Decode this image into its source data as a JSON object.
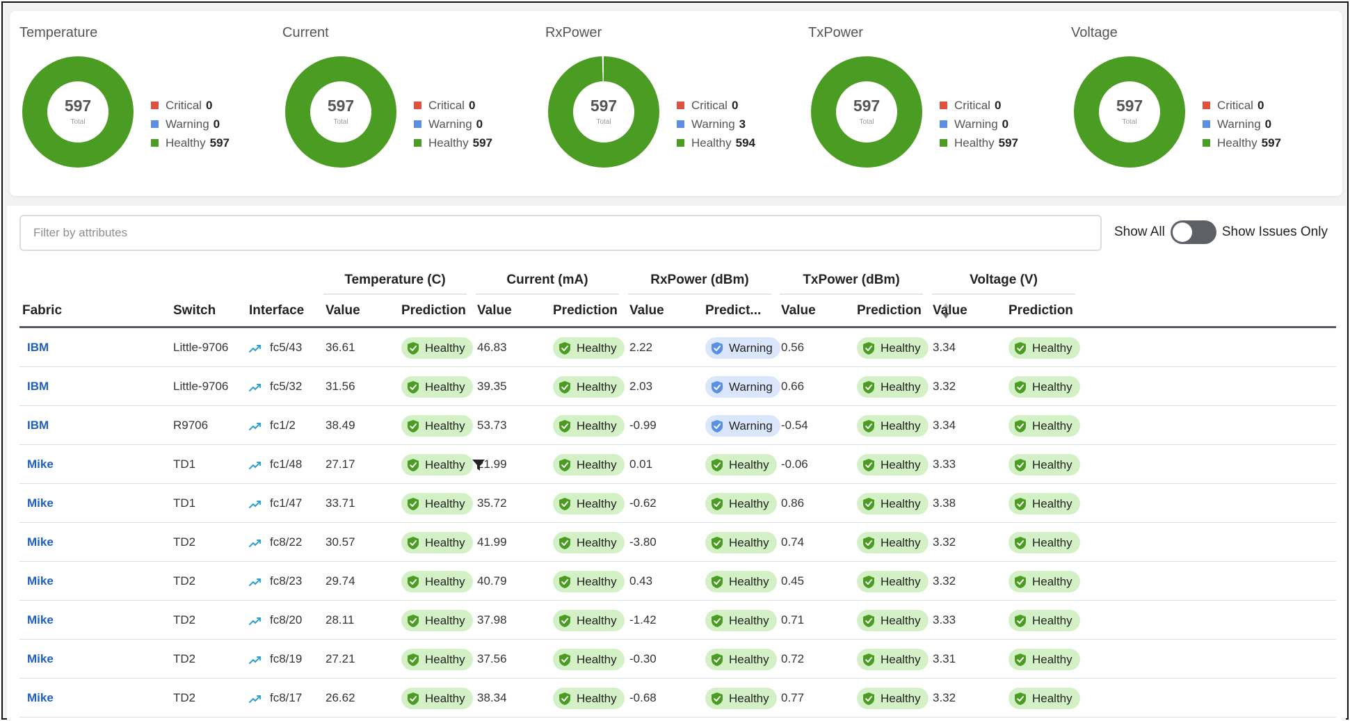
{
  "summary": {
    "colors": {
      "critical": "#e0523f",
      "warning": "#5a8fe6",
      "healthy": "#4b9c22"
    },
    "total_label": "Total",
    "gauges": [
      {
        "title": "Temperature",
        "total": "597",
        "critical_label": "Critical",
        "critical": 0,
        "warning_label": "Warning",
        "warning": 0,
        "healthy_label": "Healthy",
        "healthy": 597
      },
      {
        "title": "Current",
        "total": "597",
        "critical_label": "Critical",
        "critical": 0,
        "warning_label": "Warning",
        "warning": 0,
        "healthy_label": "Healthy",
        "healthy": 597
      },
      {
        "title": "RxPower",
        "total": "597",
        "critical_label": "Critical",
        "critical": 0,
        "warning_label": "Warning",
        "warning": 3,
        "healthy_label": "Healthy",
        "healthy": 594
      },
      {
        "title": "TxPower",
        "total": "597",
        "critical_label": "Critical",
        "critical": 0,
        "warning_label": "Warning",
        "warning": 0,
        "healthy_label": "Healthy",
        "healthy": 597
      },
      {
        "title": "Voltage",
        "total": "597",
        "critical_label": "Critical",
        "critical": 0,
        "warning_label": "Warning",
        "warning": 0,
        "healthy_label": "Healthy",
        "healthy": 597
      }
    ]
  },
  "filter": {
    "placeholder": "Filter by attributes",
    "value": ""
  },
  "toggle": {
    "left_label": "Show All",
    "right_label": "Show Issues Only",
    "checked": false
  },
  "table": {
    "groups": [
      "Temperature (C)",
      "Current (mA)",
      "RxPower (dBm)",
      "TxPower (dBm)",
      "Voltage (V)"
    ],
    "columns": {
      "fabric": "Fabric",
      "switch": "Switch",
      "interface": "Interface",
      "temp_value": "Value",
      "temp_pred": "Prediction",
      "cur_value": "Value",
      "cur_pred": "Prediction",
      "rx_value": "Value",
      "rx_pred": "Predict...",
      "tx_value": "Value",
      "tx_pred": "Prediction",
      "volt_value": "Value",
      "volt_pred": "Prediction"
    },
    "rows": [
      {
        "fabric": "IBM",
        "switch": "Little-9706",
        "interface": "fc5/43",
        "temp": "36.61",
        "temp_pred": "Healthy",
        "cur": "46.83",
        "cur_pred": "Healthy",
        "rx": "2.22",
        "rx_pred": "Warning",
        "tx": "0.56",
        "tx_pred": "Healthy",
        "volt": "3.34",
        "volt_pred": "Healthy"
      },
      {
        "fabric": "IBM",
        "switch": "Little-9706",
        "interface": "fc5/32",
        "temp": "31.56",
        "temp_pred": "Healthy",
        "cur": "39.35",
        "cur_pred": "Healthy",
        "rx": "2.03",
        "rx_pred": "Warning",
        "tx": "0.66",
        "tx_pred": "Healthy",
        "volt": "3.32",
        "volt_pred": "Healthy"
      },
      {
        "fabric": "IBM",
        "switch": "R9706",
        "interface": "fc1/2",
        "temp": "38.49",
        "temp_pred": "Healthy",
        "cur": "53.73",
        "cur_pred": "Healthy",
        "rx": "-0.99",
        "rx_pred": "Warning",
        "tx": "-0.54",
        "tx_pred": "Healthy",
        "volt": "3.34",
        "volt_pred": "Healthy"
      },
      {
        "fabric": "Mike",
        "switch": "TD1",
        "interface": "fc1/48",
        "temp": "27.17",
        "temp_pred": "Healthy",
        "cur": "21.99",
        "cur_pred": "Healthy",
        "rx": "0.01",
        "rx_pred": "Healthy",
        "tx": "-0.06",
        "tx_pred": "Healthy",
        "volt": "3.33",
        "volt_pred": "Healthy",
        "filter_icon": true
      },
      {
        "fabric": "Mike",
        "switch": "TD1",
        "interface": "fc1/47",
        "temp": "33.71",
        "temp_pred": "Healthy",
        "cur": "35.72",
        "cur_pred": "Healthy",
        "rx": "-0.62",
        "rx_pred": "Healthy",
        "tx": "0.86",
        "tx_pred": "Healthy",
        "volt": "3.38",
        "volt_pred": "Healthy"
      },
      {
        "fabric": "Mike",
        "switch": "TD2",
        "interface": "fc8/22",
        "temp": "30.57",
        "temp_pred": "Healthy",
        "cur": "41.99",
        "cur_pred": "Healthy",
        "rx": "-3.80",
        "rx_pred": "Healthy",
        "tx": "0.74",
        "tx_pred": "Healthy",
        "volt": "3.32",
        "volt_pred": "Healthy"
      },
      {
        "fabric": "Mike",
        "switch": "TD2",
        "interface": "fc8/23",
        "temp": "29.74",
        "temp_pred": "Healthy",
        "cur": "40.79",
        "cur_pred": "Healthy",
        "rx": "0.43",
        "rx_pred": "Healthy",
        "tx": "0.45",
        "tx_pred": "Healthy",
        "volt": "3.32",
        "volt_pred": "Healthy"
      },
      {
        "fabric": "Mike",
        "switch": "TD2",
        "interface": "fc8/20",
        "temp": "28.11",
        "temp_pred": "Healthy",
        "cur": "37.98",
        "cur_pred": "Healthy",
        "rx": "-1.42",
        "rx_pred": "Healthy",
        "tx": "0.71",
        "tx_pred": "Healthy",
        "volt": "3.33",
        "volt_pred": "Healthy"
      },
      {
        "fabric": "Mike",
        "switch": "TD2",
        "interface": "fc8/19",
        "temp": "27.21",
        "temp_pred": "Healthy",
        "cur": "37.56",
        "cur_pred": "Healthy",
        "rx": "-0.30",
        "rx_pred": "Healthy",
        "tx": "0.72",
        "tx_pred": "Healthy",
        "volt": "3.31",
        "volt_pred": "Healthy"
      },
      {
        "fabric": "Mike",
        "switch": "TD2",
        "interface": "fc8/17",
        "temp": "26.62",
        "temp_pred": "Healthy",
        "cur": "38.34",
        "cur_pred": "Healthy",
        "rx": "-0.68",
        "rx_pred": "Healthy",
        "tx": "0.77",
        "tx_pred": "Healthy",
        "volt": "3.32",
        "volt_pred": "Healthy"
      }
    ]
  },
  "icons": {
    "trend": "trend-up-icon",
    "shield": "shield-check-icon",
    "filter": "filter-funnel-icon",
    "sort": "sort-arrows-icon"
  }
}
